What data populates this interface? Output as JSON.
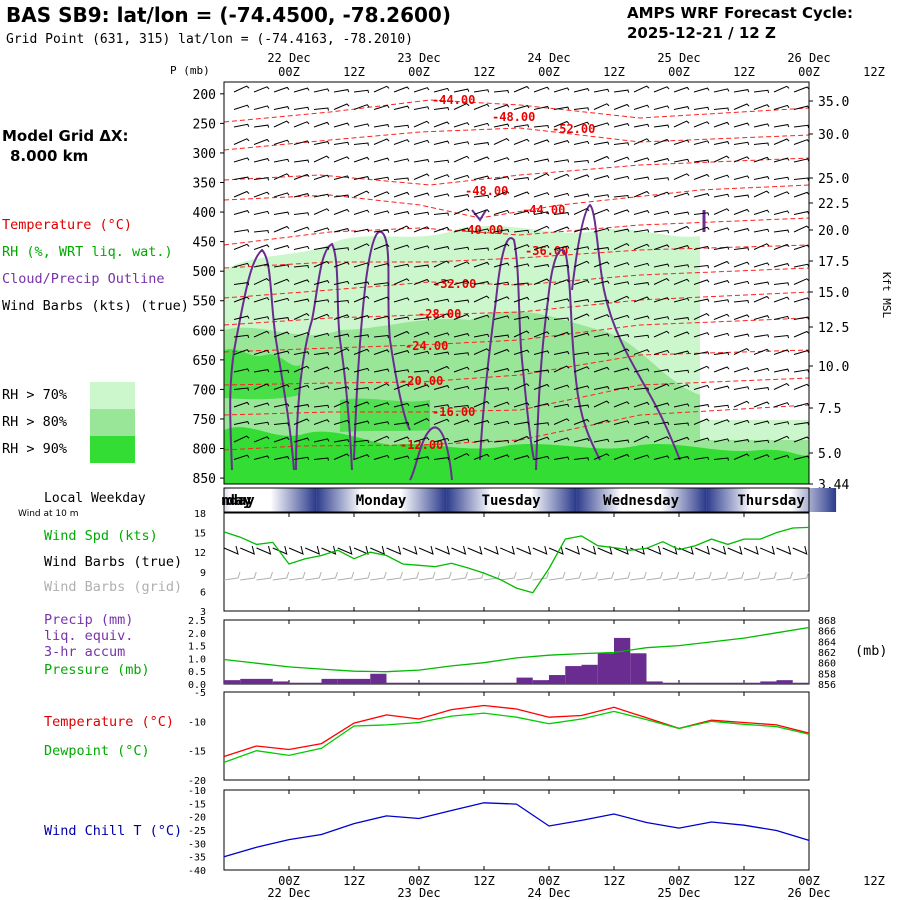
{
  "header": {
    "title": "BAS SB9:  lat/lon = (-74.4500, -78.2600)",
    "subtitle": "Grid Point (631, 315) lat/lon = (-74.4163, -78.2010)",
    "cycle_label": "AMPS WRF Forecast Cycle:",
    "cycle_value": "2025-12-21 / 12  Z"
  },
  "model_grid": {
    "label": "Model Grid ΔX:",
    "value": "8.000 km"
  },
  "legend": {
    "temperature": "Temperature (°C)",
    "rh": "RH (%, WRT liq. wat.)",
    "cloud": "Cloud/Precip Outline",
    "wind_barbs": "Wind Barbs (kts) (true)",
    "rh70": "RH > 70%",
    "rh80": "RH > 80%",
    "rh90": "RH > 90%",
    "rh_colors": [
      "#ccf7cc",
      "#99e699",
      "#33dd33"
    ]
  },
  "time_axis": {
    "hours": [
      "00Z",
      "12Z",
      "00Z",
      "12Z",
      "00Z",
      "12Z",
      "00Z",
      "12Z",
      "00Z",
      "12Z"
    ],
    "days": [
      "22 Dec",
      "23 Dec",
      "24 Dec",
      "25 Dec",
      "26 Dec"
    ],
    "weekdays": [
      "nday",
      "Monday",
      "Tuesday",
      "Wednesday",
      "Thursday"
    ],
    "local_weekday_label": "Local Weekday",
    "wind_10m_label": "Wind at 10 m"
  },
  "chart_data": [
    {
      "type": "contour",
      "name_panel": "cross-section",
      "y_left_label": "P (mb)",
      "y_left_ticks": [
        200,
        250,
        300,
        350,
        400,
        450,
        500,
        550,
        600,
        650,
        700,
        750,
        800,
        850
      ],
      "y_right_label": "Kft MSL",
      "y_right_ticks": [
        "35.0",
        "30.0",
        "25.0",
        "22.5",
        "20.0",
        "17.5",
        "15.0",
        "12.5",
        "10.0",
        "7.5",
        "5.0",
        "3.44"
      ],
      "temperature_labels": [
        "-44.00",
        "-48.00",
        "-52.00",
        "-48.00",
        "-44.00",
        "-40.00",
        "-36.00",
        "-32.00",
        "-28.00",
        "-24.00",
        "-20.00",
        "-16.00",
        "-12.00"
      ]
    },
    {
      "type": "line",
      "name_panel": "wind",
      "ylabel": "Wind Spd (kts)",
      "barbs_true_label": "Wind Barbs (true)",
      "barbs_grid_label": "Wind Barbs (grid)",
      "ylim": [
        3,
        18
      ],
      "yticks": [
        3,
        6,
        9,
        12,
        15,
        18
      ],
      "x_hours": [
        0,
        3,
        6,
        9,
        12,
        15,
        18,
        21,
        24,
        27,
        30,
        33,
        36,
        39,
        42,
        45,
        48,
        51,
        54,
        57,
        60,
        63,
        66,
        69,
        72,
        75,
        78,
        81,
        84,
        87,
        90,
        93,
        96,
        99,
        102,
        105,
        108
      ],
      "values": [
        15.1,
        14.3,
        13.2,
        13.5,
        10.2,
        11.0,
        11.5,
        12.3,
        11.0,
        12.0,
        11.5,
        10.2,
        10.0,
        9.8,
        10.3,
        9.6,
        8.8,
        7.8,
        6.5,
        5.8,
        9.5,
        14.0,
        14.5,
        13.0,
        12.7,
        12.3,
        12.6,
        13.6,
        12.4,
        13.0,
        14.0,
        13.2,
        14.0,
        14.0,
        15.0,
        15.7,
        15.8
      ]
    },
    {
      "type": "bar+line",
      "name_panel": "precip-pressure",
      "precip_label": "Precip (mm)",
      "precip_sub1": "liq. equiv.",
      "precip_sub2": "3-hr accum",
      "pressure_label": "Pressure (mb)",
      "pressure_unit": "(mb)",
      "precip_ylim": [
        0,
        2.5
      ],
      "precip_yticks": [
        "0.0",
        "0.5",
        "1.0",
        "1.5",
        "2.0",
        "2.5"
      ],
      "pressure_ylim": [
        856,
        868
      ],
      "pressure_yticks": [
        "856",
        "858",
        "860",
        "862",
        "864",
        "866",
        "868"
      ],
      "bar_x_hours": [
        1.5,
        4.5,
        7.5,
        10.5,
        13.5,
        16.5,
        19.5,
        22.5,
        25.5,
        28.5,
        31.5,
        34.5,
        37.5,
        40.5,
        43.5,
        46.5,
        49.5,
        52.5,
        55.5,
        58.5,
        61.5,
        64.5,
        67.5,
        70.5,
        73.5,
        76.5,
        79.5,
        82.5,
        85.5,
        88.5,
        91.5,
        94.5,
        97.5,
        100.5,
        103.5,
        106.5
      ],
      "precip": [
        0.15,
        0.2,
        0.2,
        0.1,
        0.05,
        0.05,
        0.2,
        0.2,
        0.2,
        0.4,
        0.05,
        0.05,
        0.05,
        0.05,
        0.05,
        0.05,
        0.05,
        0.05,
        0.25,
        0.15,
        0.35,
        0.7,
        0.75,
        1.2,
        1.8,
        1.2,
        0.1,
        0.05,
        0.05,
        0.05,
        0.05,
        0.05,
        0.05,
        0.1,
        0.15,
        0.05
      ],
      "pressure_x_hours": [
        0,
        6,
        12,
        18,
        24,
        30,
        36,
        42,
        48,
        54,
        60,
        66,
        72,
        78,
        84,
        90,
        96,
        102,
        108
      ],
      "pressure": [
        860.6,
        859.9,
        859.2,
        858.8,
        858.4,
        858.3,
        858.6,
        859.4,
        860.0,
        860.9,
        861.4,
        861.7,
        861.9,
        862.8,
        863.2,
        863.9,
        864.6,
        865.6,
        866.6
      ]
    },
    {
      "type": "line",
      "name_panel": "temperature-dewpoint",
      "temp_label": "Temperature (°C)",
      "dew_label": "Dewpoint (°C)",
      "ylim": [
        -20,
        -5
      ],
      "yticks": [
        "-5",
        "-10",
        "-15",
        "-20"
      ],
      "x_hours": [
        0,
        6,
        12,
        18,
        24,
        30,
        36,
        42,
        48,
        54,
        60,
        66,
        72,
        78,
        84,
        90,
        96,
        102,
        108
      ],
      "series": [
        {
          "name": "Temperature (°C)",
          "color": "#ff0000",
          "values": [
            -16.0,
            -14.2,
            -14.8,
            -13.8,
            -10.3,
            -8.9,
            -9.6,
            -8.0,
            -7.3,
            -7.9,
            -9.3,
            -9.0,
            -7.6,
            -9.4,
            -11.2,
            -9.8,
            -10.2,
            -10.6,
            -12.0
          ]
        },
        {
          "name": "Dewpoint (°C)",
          "color": "#00cc00",
          "values": [
            -17.0,
            -15.0,
            -15.8,
            -14.6,
            -10.8,
            -10.6,
            -10.2,
            -9.1,
            -8.6,
            -9.3,
            -10.4,
            -9.6,
            -8.3,
            -9.7,
            -11.2,
            -10.0,
            -10.5,
            -10.9,
            -12.2
          ]
        }
      ]
    },
    {
      "type": "line",
      "name_panel": "wind-chill",
      "ylabel": "Wind Chill T (°C)",
      "ylim": [
        -40,
        -10
      ],
      "yticks": [
        "-10",
        "-15",
        "-20",
        "-25",
        "-30",
        "-35",
        "-40"
      ],
      "x_hours": [
        0,
        6,
        12,
        18,
        24,
        30,
        36,
        42,
        48,
        54,
        60,
        66,
        72,
        78,
        84,
        90,
        96,
        102,
        108
      ],
      "values": [
        -35.0,
        -31.5,
        -28.6,
        -26.7,
        -22.6,
        -19.7,
        -20.7,
        -17.7,
        -14.8,
        -15.3,
        -23.5,
        -21.4,
        -19.0,
        -22.2,
        -24.3,
        -22.0,
        -23.2,
        -25.2,
        -28.9
      ],
      "color": "#0000cc"
    }
  ]
}
